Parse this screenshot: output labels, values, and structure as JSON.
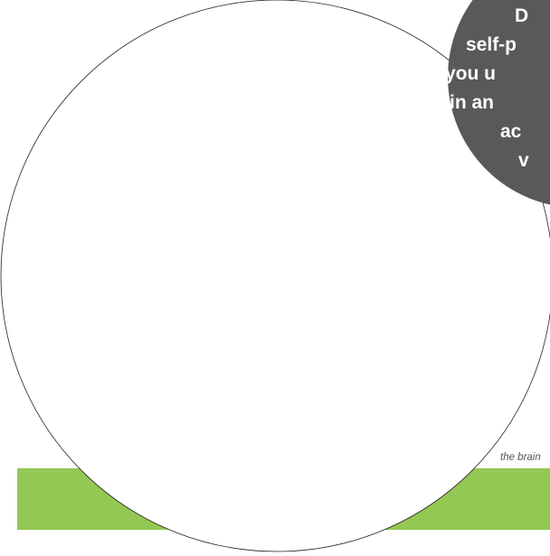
{
  "colors": {
    "background": "#ffffff",
    "green_band": "#92c853",
    "callout_bubble": "#58595b",
    "circle_outline": "#231f20",
    "callout_text": "#ffffff",
    "caption_text": "#555555"
  },
  "callout": {
    "lines": [
      "D",
      "self-p",
      "you u",
      "in an",
      "ac",
      "v"
    ]
  },
  "caption": {
    "text": "the brain"
  }
}
